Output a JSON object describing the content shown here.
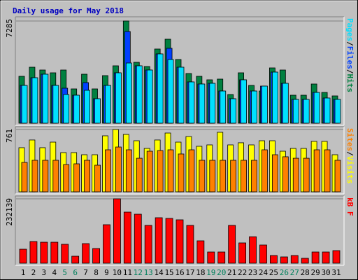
{
  "chart_data": [
    {
      "type": "bar",
      "title": "Daily usage for May 2018",
      "legend_separator": "/",
      "series": [
        {
          "name": "Hits",
          "color": "#008040",
          "values": [
            3343,
            3992,
            3792,
            3593,
            3792,
            2445,
            3493,
            2445,
            3393,
            4092,
            7285,
            4341,
            4042,
            5289,
            5988,
            4541,
            3543,
            3343,
            3094,
            3144,
            2046,
            3593,
            2694,
            2295,
            3942,
            3792,
            1996,
            1996,
            2794,
            2195,
            1946
          ]
        },
        {
          "name": "Files",
          "color": "#0040ff",
          "values": [
            2694,
            3243,
            3493,
            2694,
            2495,
            1996,
            2894,
            1746,
            2694,
            3593,
            6536,
            4092,
            3792,
            4940,
            5339,
            3992,
            2944,
            2794,
            2844,
            2295,
            1746,
            3094,
            2295,
            2645,
            3643,
            2844,
            1697,
            1697,
            2195,
            1796,
            1697
          ]
        },
        {
          "name": "Pages",
          "color": "#00e0ff",
          "values": [
            2694,
            3243,
            3493,
            2694,
            2046,
            1996,
            2345,
            1746,
            2694,
            3593,
            4291,
            4092,
            3792,
            4940,
            4541,
            3992,
            2944,
            2794,
            2844,
            2295,
            1746,
            3094,
            2295,
            2645,
            3643,
            2844,
            1697,
            1697,
            2195,
            1796,
            1697
          ]
        }
      ],
      "ylim": [
        0,
        7285
      ],
      "yticks": [
        7285
      ]
    },
    {
      "type": "bar",
      "legend_separator": "/",
      "series": [
        {
          "name": "Visits",
          "color": "#ffff00",
          "values": [
            539,
            633,
            539,
            607,
            479,
            479,
            453,
            453,
            684,
            761,
            701,
            624,
            530,
            633,
            718,
            607,
            675,
            556,
            573,
            727,
            573,
            599,
            573,
            624,
            624,
            496,
            530,
            530,
            616,
            616,
            453
          ]
        },
        {
          "name": "Sites",
          "color": "#ff8000",
          "values": [
            359,
            385,
            385,
            385,
            333,
            342,
            385,
            325,
            513,
            547,
            513,
            410,
            496,
            504,
            513,
            462,
            513,
            385,
            385,
            385,
            385,
            385,
            385,
            513,
            453,
            428,
            410,
            410,
            513,
            513,
            385
          ]
        }
      ],
      "ylim": [
        0,
        761
      ],
      "yticks": [
        761
      ]
    },
    {
      "type": "bar",
      "categories": [
        "1",
        "2",
        "3",
        "4",
        "5",
        "6",
        "7",
        "8",
        "9",
        "10",
        "11",
        "12",
        "13",
        "14",
        "15",
        "16",
        "17",
        "18",
        "19",
        "20",
        "21",
        "22",
        "23",
        "24",
        "25",
        "26",
        "27",
        "28",
        "29",
        "30",
        "31"
      ],
      "category_label_colors": [
        "#000000",
        "#000000",
        "#000000",
        "#000000",
        "#00805c",
        "#00805c",
        "#000000",
        "#000000",
        "#000000",
        "#000000",
        "#000000",
        "#00805c",
        "#00805c",
        "#000000",
        "#000000",
        "#000000",
        "#000000",
        "#000000",
        "#00805c",
        "#00805c",
        "#000000",
        "#000000",
        "#000000",
        "#000000",
        "#000000",
        "#00805c",
        "#00805c",
        "#000000",
        "#000000",
        "#000000",
        "#000000"
      ],
      "series": [
        {
          "name": "kB F",
          "color": "#ff0000",
          "values": [
            50465,
            78221,
            75697,
            75697,
            68128,
            25233,
            70651,
            52988,
            138779,
            232139,
            184197,
            176628,
            136257,
            164013,
            161489,
            156443,
            136257,
            80744,
            40372,
            40372,
            136257,
            73174,
            95453,
            65604,
            27756,
            22709,
            27756,
            17663,
            40372,
            40372,
            45418
          ]
        }
      ],
      "ylim": [
        0,
        232139
      ],
      "yticks": [
        232139
      ]
    }
  ]
}
